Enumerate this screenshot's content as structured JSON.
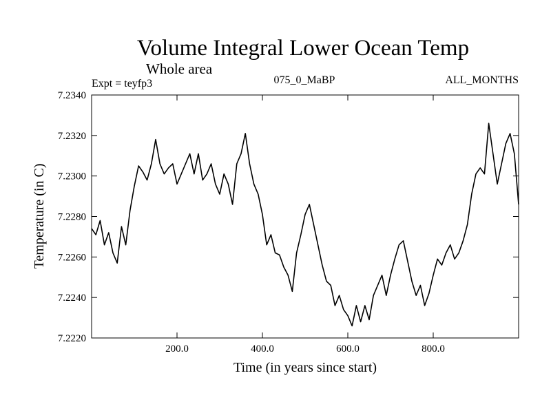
{
  "title": "Volume Integral Lower Ocean Temp",
  "subtitle": "Whole area",
  "expt_label": "Expt = teyfp3",
  "run_label": "075_0_MaBP",
  "months_label": "ALL_MONTHS",
  "colors": {
    "line": "#000000",
    "axis": "#000000",
    "background": "#ffffff"
  },
  "chart_data": {
    "type": "line",
    "title": "Volume Integral Lower Ocean Temp",
    "xlabel": "Time (in years since start)",
    "ylabel": "Temperature (in C)",
    "xlim": [
      0,
      1000
    ],
    "ylim": [
      7.222,
      7.234
    ],
    "x_ticks": [
      200,
      400,
      600,
      800
    ],
    "x_tick_labels": [
      "200.0",
      "400.0",
      "600.0",
      "800.0"
    ],
    "y_ticks": [
      7.222,
      7.224,
      7.226,
      7.228,
      7.23,
      7.232,
      7.234
    ],
    "y_tick_labels": [
      "7.2220",
      "7.2240",
      "7.2260",
      "7.2280",
      "7.2300",
      "7.2320",
      "7.2340"
    ],
    "grid": false,
    "series": [
      {
        "name": "Volume Integral Lower Ocean Temp",
        "x": [
          0,
          10,
          20,
          30,
          40,
          50,
          60,
          70,
          80,
          90,
          100,
          110,
          120,
          130,
          140,
          150,
          160,
          170,
          180,
          190,
          200,
          210,
          220,
          230,
          240,
          250,
          260,
          270,
          280,
          290,
          300,
          310,
          320,
          330,
          340,
          350,
          360,
          370,
          380,
          390,
          400,
          410,
          420,
          430,
          440,
          450,
          460,
          470,
          480,
          490,
          500,
          510,
          520,
          530,
          540,
          550,
          560,
          570,
          580,
          590,
          600,
          610,
          620,
          630,
          640,
          650,
          660,
          670,
          680,
          690,
          700,
          710,
          720,
          730,
          740,
          750,
          760,
          770,
          780,
          790,
          800,
          810,
          820,
          830,
          840,
          850,
          860,
          870,
          880,
          890,
          900,
          910,
          920,
          930,
          940,
          950,
          960,
          970,
          980,
          990,
          1000
        ],
        "values": [
          7.2274,
          7.2271,
          7.2278,
          7.2266,
          7.2272,
          7.2262,
          7.2257,
          7.2275,
          7.2266,
          7.2283,
          7.2295,
          7.2305,
          7.2302,
          7.2298,
          7.2306,
          7.2318,
          7.2306,
          7.2301,
          7.2304,
          7.2306,
          7.2296,
          7.2301,
          7.2306,
          7.2311,
          7.2301,
          7.2311,
          7.2298,
          7.2301,
          7.2306,
          7.2296,
          7.2291,
          7.2301,
          7.2296,
          7.2286,
          7.2306,
          7.2311,
          7.2321,
          7.2306,
          7.2296,
          7.2291,
          7.2281,
          7.2266,
          7.2271,
          7.2262,
          7.2261,
          7.2255,
          7.2251,
          7.2243,
          7.2262,
          7.2271,
          7.2281,
          7.2286,
          7.2276,
          7.2266,
          7.2256,
          7.2248,
          7.2246,
          7.2236,
          7.2241,
          7.2234,
          7.2231,
          7.2226,
          7.2236,
          7.2228,
          7.2236,
          7.2229,
          7.2241,
          7.2246,
          7.2251,
          7.2241,
          7.2251,
          7.2259,
          7.2266,
          7.2268,
          7.2258,
          7.2248,
          7.2241,
          7.2246,
          7.2236,
          7.2242,
          7.2251,
          7.2259,
          7.2256,
          7.2262,
          7.2266,
          7.2259,
          7.2262,
          7.2268,
          7.2276,
          7.2291,
          7.2301,
          7.2304,
          7.2301,
          7.2326,
          7.2311,
          7.2296,
          7.2306,
          7.2316,
          7.2321,
          7.2311,
          7.2286
        ]
      }
    ]
  }
}
